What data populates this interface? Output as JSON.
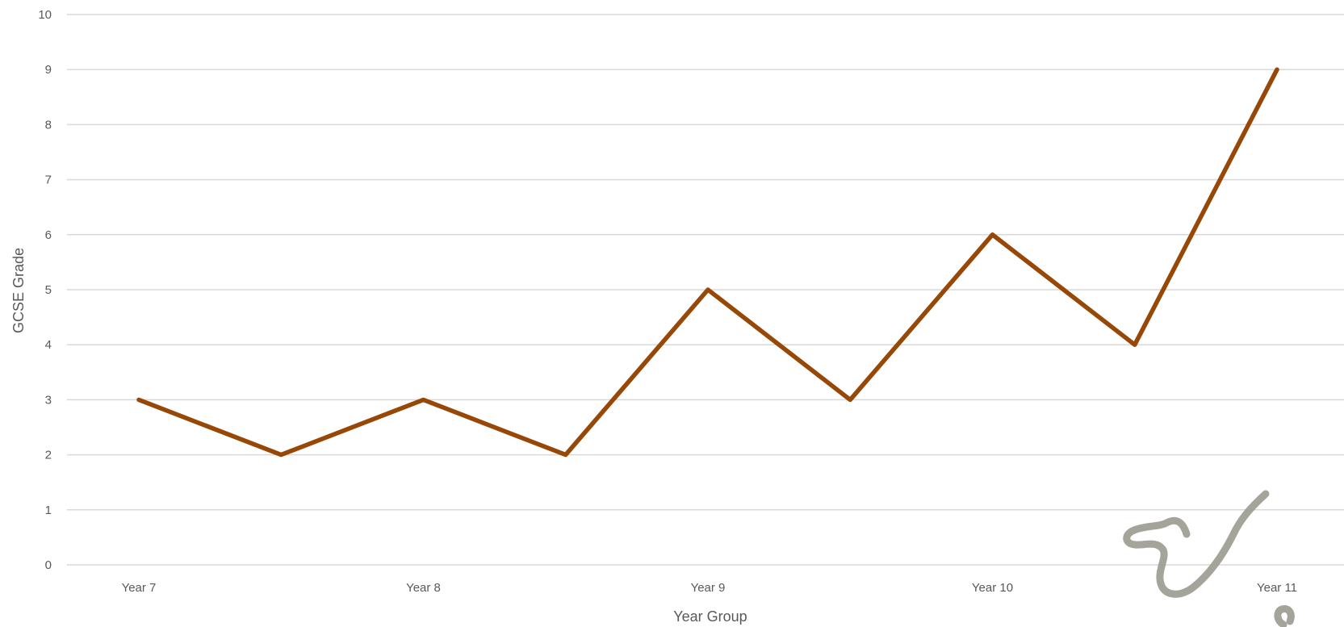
{
  "chart_data": {
    "type": "line",
    "title": "",
    "xlabel": "Year Group",
    "ylabel": "GCSE Grade",
    "x_tick_labels": [
      "Year 7",
      "Year 8",
      "Year 9",
      "Year 10",
      "Year 11"
    ],
    "y_tick_labels": [
      "0",
      "1",
      "2",
      "3",
      "4",
      "5",
      "6",
      "7",
      "8",
      "9",
      "10"
    ],
    "ylim": [
      0,
      10
    ],
    "y_step": 1,
    "grid": true,
    "legend": "none",
    "series": [
      {
        "color": "#974706",
        "points": [
          {
            "x": "Year 7",
            "y": 3
          },
          {
            "x": "Year 7.5",
            "y": 2
          },
          {
            "x": "Year 8",
            "y": 3
          },
          {
            "x": "Year 8.5",
            "y": 2
          },
          {
            "x": "Year 9",
            "y": 5
          },
          {
            "x": "Year 9.5",
            "y": 3
          },
          {
            "x": "Year 10",
            "y": 6
          },
          {
            "x": "Year 10.5",
            "y": 4
          },
          {
            "x": "Year 11",
            "y": 9
          }
        ],
        "values": [
          3,
          2,
          3,
          2,
          5,
          3,
          6,
          4,
          9
        ]
      }
    ],
    "colors": {
      "gridline": "#d9d9d9",
      "text": "#595959",
      "line": "#974706",
      "scribble": "#9a9a90"
    }
  }
}
